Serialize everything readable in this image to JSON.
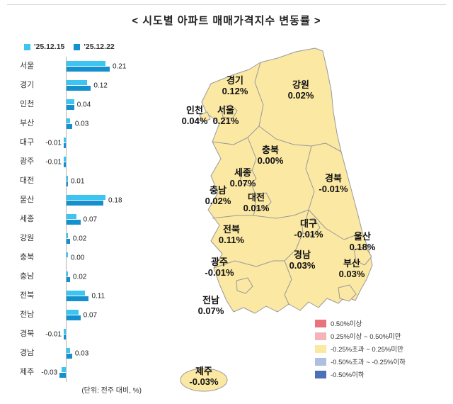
{
  "title": "< 시도별 아파트 매매가격지수 변동률 >",
  "unit_note": "(단위: 전주 대비, %)",
  "colors": {
    "series1": "#3BC5F0",
    "series2": "#1590CF",
    "map_fill": "#FBE8A3",
    "map_border": "#999999"
  },
  "chart_data": {
    "type": "bar",
    "orientation": "horizontal",
    "title": "시도별 아파트 매매가격지수 변동률",
    "unit": "% (전주 대비)",
    "xlim": [
      -0.05,
      0.25
    ],
    "categories": [
      "서울",
      "경기",
      "인천",
      "부산",
      "대구",
      "광주",
      "대전",
      "울산",
      "세종",
      "강원",
      "충북",
      "충남",
      "전북",
      "전남",
      "경북",
      "경남",
      "제주"
    ],
    "series": [
      {
        "name": "'25.12.15",
        "values": [
          0.19,
          0.1,
          0.04,
          0.02,
          -0.01,
          -0.01,
          0.01,
          0.19,
          0.05,
          0.01,
          0.01,
          0.01,
          0.09,
          0.06,
          -0.01,
          0.02,
          -0.02
        ]
      },
      {
        "name": "'25.12.22",
        "values": [
          0.21,
          0.12,
          0.04,
          0.03,
          -0.01,
          -0.01,
          0.01,
          0.18,
          0.07,
          0.02,
          0.0,
          0.02,
          0.11,
          0.07,
          -0.01,
          0.03,
          -0.03
        ]
      }
    ],
    "value_labels": [
      "0.21",
      "0.12",
      "0.04",
      "0.03",
      "-0.01",
      "-0.01",
      "0.01",
      "0.18",
      "0.07",
      "0.02",
      "0.00",
      "0.02",
      "0.11",
      "0.07",
      "-0.01",
      "0.03",
      "-0.03"
    ],
    "legend_position": "top-left"
  },
  "map": {
    "regions": [
      {
        "name": "경기",
        "value": "0.12%"
      },
      {
        "name": "강원",
        "value": "0.02%"
      },
      {
        "name": "인천",
        "value": "0.04%"
      },
      {
        "name": "서울",
        "value": "0.21%"
      },
      {
        "name": "충북",
        "value": "0.00%"
      },
      {
        "name": "세종",
        "value": "0.07%"
      },
      {
        "name": "경북",
        "value": "-0.01%"
      },
      {
        "name": "충남",
        "value": "0.02%"
      },
      {
        "name": "대전",
        "value": "0.01%"
      },
      {
        "name": "전북",
        "value": "0.11%"
      },
      {
        "name": "대구",
        "value": "-0.01%"
      },
      {
        "name": "울산",
        "value": "0.18%"
      },
      {
        "name": "광주",
        "value": "-0.01%"
      },
      {
        "name": "경남",
        "value": "0.03%"
      },
      {
        "name": "부산",
        "value": "0.03%"
      },
      {
        "name": "전남",
        "value": "0.07%"
      },
      {
        "name": "제주",
        "value": "-0.03%"
      }
    ],
    "legend": [
      {
        "label": "0.50%이상",
        "color": "#E8737D"
      },
      {
        "label": "0.25%이상 ~ 0.50%미만",
        "color": "#F3B3B8"
      },
      {
        "label": "-0.25%초과 ~ 0.25%미만",
        "color": "#FBE8A3"
      },
      {
        "label": "-0.50%초과 ~ -0.25%이하",
        "color": "#AEC0DF"
      },
      {
        "label": "-0.50%이하",
        "color": "#4D6FB8"
      }
    ]
  }
}
